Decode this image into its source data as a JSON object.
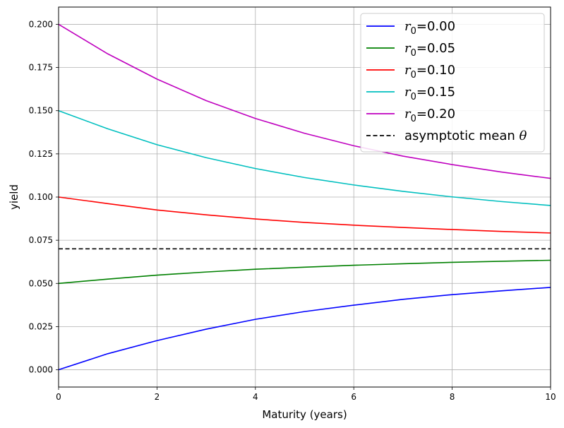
{
  "chart_data": {
    "type": "line",
    "title": "",
    "xlabel": "Maturity (years)",
    "ylabel": "yield",
    "xlim": [
      0,
      10
    ],
    "ylim": [
      -0.01,
      0.21
    ],
    "x_ticks": [
      0,
      2,
      4,
      6,
      8,
      10
    ],
    "x_tick_labels": [
      "0",
      "2",
      "4",
      "6",
      "8",
      "10"
    ],
    "y_ticks": [
      0.0,
      0.025,
      0.05,
      0.075,
      0.1,
      0.125,
      0.15,
      0.175,
      0.2
    ],
    "y_tick_labels": [
      "0.000",
      "0.025",
      "0.050",
      "0.075",
      "0.100",
      "0.125",
      "0.150",
      "0.175",
      "0.200"
    ],
    "grid": true,
    "legend_position": "top-right",
    "x": [
      0,
      1,
      2,
      3,
      4,
      5,
      6,
      7,
      8,
      9,
      10
    ],
    "series": [
      {
        "name": "r0=0.00",
        "legend_base": "r",
        "legend_sub": "0",
        "legend_rest": "=0.00",
        "color": "#0000ff",
        "dash": "solid",
        "values": [
          0.0,
          0.0093,
          0.0169,
          0.0235,
          0.0292,
          0.0337,
          0.0374,
          0.0408,
          0.0435,
          0.0457,
          0.0477
        ]
      },
      {
        "name": "r0=0.05",
        "legend_base": "r",
        "legend_sub": "0",
        "legend_rest": "=0.05",
        "color": "#008000",
        "dash": "solid",
        "values": [
          0.05,
          0.0525,
          0.0548,
          0.0566,
          0.0582,
          0.0594,
          0.0605,
          0.0614,
          0.0622,
          0.0628,
          0.0634
        ]
      },
      {
        "name": "r0=0.10",
        "legend_base": "r",
        "legend_sub": "0",
        "legend_rest": "=0.10",
        "color": "#ff0000",
        "dash": "solid",
        "values": [
          0.1,
          0.0962,
          0.0925,
          0.0897,
          0.0873,
          0.0853,
          0.0837,
          0.0824,
          0.0812,
          0.0801,
          0.0792
        ]
      },
      {
        "name": "r0=0.15",
        "legend_base": "r",
        "legend_sub": "0",
        "legend_rest": "=0.15",
        "color": "#00bfbf",
        "dash": "solid",
        "values": [
          0.15,
          0.1395,
          0.1303,
          0.1228,
          0.1165,
          0.1113,
          0.107,
          0.1033,
          0.1001,
          0.0974,
          0.0951
        ]
      },
      {
        "name": "r0=0.20",
        "legend_base": "r",
        "legend_sub": "0",
        "legend_rest": "=0.20",
        "color": "#bf00bf",
        "dash": "solid",
        "values": [
          0.2,
          0.1829,
          0.1683,
          0.1558,
          0.1455,
          0.1369,
          0.1297,
          0.1237,
          0.1188,
          0.1145,
          0.1108
        ]
      },
      {
        "name": "asymptotic mean θ",
        "legend_base": "asymptotic mean ",
        "legend_sub": "",
        "legend_rest": "",
        "legend_symbol": "θ",
        "color": "#000000",
        "dash": "dashed",
        "values": [
          0.07,
          0.07,
          0.07,
          0.07,
          0.07,
          0.07,
          0.07,
          0.07,
          0.07,
          0.07,
          0.07
        ]
      }
    ]
  }
}
